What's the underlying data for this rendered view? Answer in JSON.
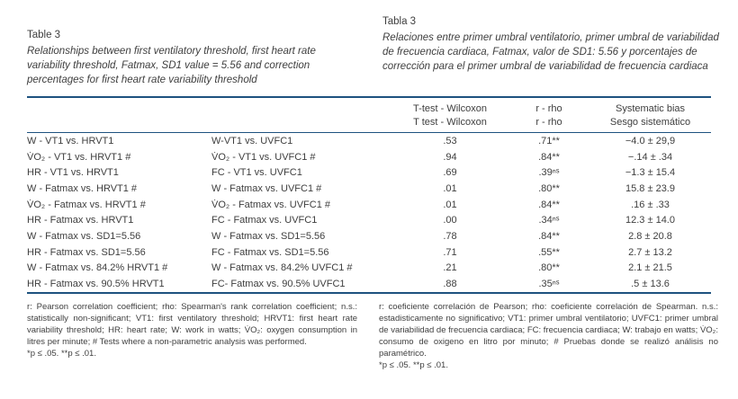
{
  "captions": {
    "en": {
      "label": "Table 3",
      "text": "Relationships between first ventilatory threshold, first heart rate variability threshold, Fatmax, SD1 value = 5.56 and correction percentages for first heart rate variability threshold"
    },
    "es": {
      "label": "Tabla 3",
      "text": "Relaciones entre primer umbral ventilatorio, primer umbral de variabilidad de frecuencia cardiaca, Fatmax, valor de SD1: 5.56 y porcentajes de corrección para el primer umbral de variabilidad de frecuencia cardiaca"
    }
  },
  "table": {
    "headers": {
      "ttest_en": "T-test - Wilcoxon",
      "ttest_es": "T test - Wilcoxon",
      "rrho_en": "r - rho",
      "rrho_es": "r - rho",
      "bias_en": "Systematic bias",
      "bias_es": "Sesgo sistemático"
    },
    "rows": [
      {
        "en": "W - VT1 vs. HRVT1",
        "es": "W-VT1 vs. UVFC1",
        "ttest": ".53",
        "rrho": ".71**",
        "bias": "−4.0 ± 29,9"
      },
      {
        "en": "V̇O₂ - VT1 vs. HRVT1 #",
        "es": "V̇O₂ - VT1 vs. UVFC1 #",
        "ttest": ".94",
        "rrho": ".84**",
        "bias": "−.14 ± .34"
      },
      {
        "en": "HR - VT1 vs. HRVT1",
        "es": "FC - VT1 vs. UVFC1",
        "ttest": ".69",
        "rrho": ".39ⁿˢ",
        "bias": "−1.3 ± 15.4"
      },
      {
        "en": "W - Fatmax vs. HRVT1 #",
        "es": "W - Fatmax vs. UVFC1 #",
        "ttest": ".01",
        "rrho": ".80**",
        "bias": "15.8 ± 23.9"
      },
      {
        "en": "V̇O₂ - Fatmax vs. HRVT1 #",
        "es": "V̇O₂ - Fatmax vs. UVFC1 #",
        "ttest": ".01",
        "rrho": ".84**",
        "bias": ".16 ± .33"
      },
      {
        "en": "HR - Fatmax vs. HRVT1",
        "es": "FC - Fatmax vs. UVFC1",
        "ttest": ".00",
        "rrho": ".34ⁿˢ",
        "bias": "12.3 ± 14.0"
      },
      {
        "en": "W - Fatmax vs. SD1=5.56",
        "es": "W - Fatmax vs. SD1=5.56",
        "ttest": ".78",
        "rrho": ".84**",
        "bias": "2.8 ± 20.8"
      },
      {
        "en": "HR - Fatmax vs. SD1=5.56",
        "es": "FC - Fatmax vs. SD1=5.56",
        "ttest": ".71",
        "rrho": ".55**",
        "bias": "2.7 ± 13.2"
      },
      {
        "en": "W - Fatmax vs. 84.2% HRVT1 #",
        "es": "W - Fatmax vs. 84.2% UVFC1 #",
        "ttest": ".21",
        "rrho": ".80**",
        "bias": "2.1 ± 21.5"
      },
      {
        "en": "HR - Fatmax vs. 90.5% HRVT1",
        "es": "FC- Fatmax vs. 90.5% UVFC1",
        "ttest": ".88",
        "rrho": ".35ⁿˢ",
        "bias": ".5 ± 13.6"
      }
    ]
  },
  "footnotes": {
    "en": {
      "body": "r: Pearson correlation coefficient; rho: Spearman's rank correlation coefficient; n.s.: statistically non-significant; VT1: first ventilatory threshold; HRVT1: first heart rate variability threshold; HR: heart rate; W: work in watts; V̇O₂: oxygen consumption in litres per minute; # Tests where a non-parametric analysis was performed.",
      "sig": "*p ≤ .05. **p ≤ .01."
    },
    "es": {
      "body": "r: coeficiente correlación de Pearson; rho: coeficiente correlación de Spearman. n.s.: estadisticamente no significativo; VT1: primer umbral ventilatorio; UVFC1: primer umbral de variabilidad de frecuencia cardiaca; FC: frecuencia cardiaca; W: trabajo en watts; V̇O₂: consumo de oxigeno en litro por minuto; # Pruebas donde se realizó análisis no paramétrico.",
      "sig": "*p ≤ .05. **p ≤ .01."
    }
  },
  "colors": {
    "rule": "#1e527f",
    "text": "#3e3e3e",
    "background": "#ffffff"
  }
}
